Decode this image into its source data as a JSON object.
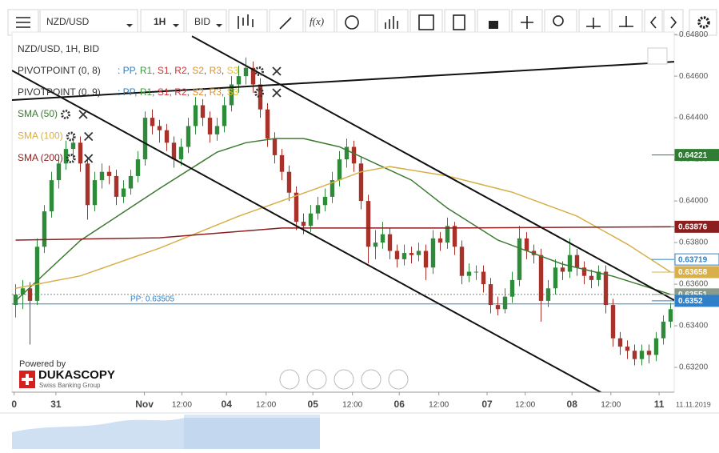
{
  "toolbar": {
    "instrument": "NZD/USD",
    "period": "1H",
    "side": "BID",
    "formula": "f(x)"
  },
  "chart_data": {
    "type": "candlestick",
    "title": "NZD/USD, 1H, BID",
    "up_color": "#2e8b3a",
    "down_color": "#a8322a",
    "candles": [
      [
        0.635,
        0.636,
        0.6344,
        0.6355
      ],
      [
        0.6355,
        0.6362,
        0.6348,
        0.6358
      ],
      [
        0.6358,
        0.6361,
        0.6331,
        0.6352
      ],
      [
        0.6352,
        0.6382,
        0.635,
        0.6378
      ],
      [
        0.6378,
        0.6398,
        0.6375,
        0.6395
      ],
      [
        0.6395,
        0.6414,
        0.6392,
        0.641
      ],
      [
        0.641,
        0.6422,
        0.6406,
        0.6418
      ],
      [
        0.6418,
        0.6429,
        0.6415,
        0.6425
      ],
      [
        0.6425,
        0.6432,
        0.642,
        0.6428
      ],
      [
        0.6428,
        0.6431,
        0.6414,
        0.6418
      ],
      [
        0.6418,
        0.6421,
        0.6391,
        0.6398
      ],
      [
        0.6398,
        0.6414,
        0.6395,
        0.641
      ],
      [
        0.641,
        0.6418,
        0.6406,
        0.6414
      ],
      [
        0.6414,
        0.6417,
        0.6408,
        0.6412
      ],
      [
        0.6412,
        0.6415,
        0.6398,
        0.6402
      ],
      [
        0.6402,
        0.641,
        0.6399,
        0.6406
      ],
      [
        0.6406,
        0.6415,
        0.6403,
        0.6412
      ],
      [
        0.6412,
        0.6424,
        0.6409,
        0.642
      ],
      [
        0.642,
        0.6443,
        0.6417,
        0.644
      ],
      [
        0.644,
        0.6444,
        0.6432,
        0.6436
      ],
      [
        0.6436,
        0.6439,
        0.6428,
        0.6434
      ],
      [
        0.6434,
        0.6437,
        0.6424,
        0.6428
      ],
      [
        0.6428,
        0.6431,
        0.6416,
        0.642
      ],
      [
        0.642,
        0.643,
        0.6417,
        0.6426
      ],
      [
        0.6426,
        0.644,
        0.6423,
        0.6436
      ],
      [
        0.6436,
        0.645,
        0.6432,
        0.6446
      ],
      [
        0.6446,
        0.6449,
        0.6436,
        0.644
      ],
      [
        0.644,
        0.6443,
        0.6428,
        0.6432
      ],
      [
        0.6432,
        0.644,
        0.6429,
        0.6436
      ],
      [
        0.6436,
        0.645,
        0.6433,
        0.6446
      ],
      [
        0.6446,
        0.646,
        0.6443,
        0.6456
      ],
      [
        0.6456,
        0.6465,
        0.6452,
        0.646
      ],
      [
        0.646,
        0.6469,
        0.6456,
        0.6464
      ],
      [
        0.6464,
        0.6467,
        0.6452,
        0.6456
      ],
      [
        0.6456,
        0.6459,
        0.644,
        0.6444
      ],
      [
        0.6444,
        0.6447,
        0.6426,
        0.643
      ],
      [
        0.643,
        0.6433,
        0.6418,
        0.6422
      ],
      [
        0.6422,
        0.6425,
        0.641,
        0.6414
      ],
      [
        0.6414,
        0.6417,
        0.64,
        0.6404
      ],
      [
        0.6404,
        0.6407,
        0.6386,
        0.639
      ],
      [
        0.639,
        0.6394,
        0.6384,
        0.6388
      ],
      [
        0.6388,
        0.6398,
        0.6385,
        0.6394
      ],
      [
        0.6394,
        0.6402,
        0.6391,
        0.6398
      ],
      [
        0.6398,
        0.6406,
        0.6395,
        0.6402
      ],
      [
        0.6402,
        0.6414,
        0.6399,
        0.641
      ],
      [
        0.641,
        0.6424,
        0.6407,
        0.642
      ],
      [
        0.642,
        0.643,
        0.6416,
        0.6426
      ],
      [
        0.6426,
        0.6429,
        0.6414,
        0.6418
      ],
      [
        0.6418,
        0.6421,
        0.6396,
        0.64
      ],
      [
        0.64,
        0.6403,
        0.637,
        0.6378
      ],
      [
        0.6378,
        0.6386,
        0.6372,
        0.638
      ],
      [
        0.638,
        0.639,
        0.6377,
        0.6384
      ],
      [
        0.6384,
        0.6387,
        0.6372,
        0.6376
      ],
      [
        0.6376,
        0.6379,
        0.6368,
        0.6372
      ],
      [
        0.6372,
        0.6379,
        0.6369,
        0.6375
      ],
      [
        0.6375,
        0.6378,
        0.637,
        0.6374
      ],
      [
        0.6374,
        0.638,
        0.6371,
        0.6376
      ],
      [
        0.6376,
        0.6379,
        0.6362,
        0.6368
      ],
      [
        0.6368,
        0.6386,
        0.6365,
        0.6382
      ],
      [
        0.6382,
        0.6385,
        0.6376,
        0.638
      ],
      [
        0.638,
        0.6392,
        0.6377,
        0.6388
      ],
      [
        0.6388,
        0.639,
        0.6374,
        0.6378
      ],
      [
        0.6378,
        0.6381,
        0.636,
        0.6364
      ],
      [
        0.6364,
        0.637,
        0.6361,
        0.6366
      ],
      [
        0.6366,
        0.6369,
        0.6362,
        0.6366
      ],
      [
        0.6366,
        0.6369,
        0.6356,
        0.636
      ],
      [
        0.636,
        0.6363,
        0.6346,
        0.635
      ],
      [
        0.635,
        0.6354,
        0.6345,
        0.6348
      ],
      [
        0.6348,
        0.6358,
        0.6346,
        0.6354
      ],
      [
        0.6354,
        0.6366,
        0.6351,
        0.6362
      ],
      [
        0.6362,
        0.6388,
        0.6359,
        0.6382
      ],
      [
        0.6382,
        0.6385,
        0.6372,
        0.6376
      ],
      [
        0.6376,
        0.6379,
        0.637,
        0.6374
      ],
      [
        0.6374,
        0.6377,
        0.6342,
        0.6352
      ],
      [
        0.6352,
        0.6362,
        0.6349,
        0.6358
      ],
      [
        0.6358,
        0.6372,
        0.6355,
        0.6368
      ],
      [
        0.6368,
        0.6371,
        0.6362,
        0.6366
      ],
      [
        0.6366,
        0.6382,
        0.6363,
        0.6374
      ],
      [
        0.6374,
        0.6377,
        0.6364,
        0.6368
      ],
      [
        0.6368,
        0.6371,
        0.636,
        0.6364
      ],
      [
        0.6364,
        0.6367,
        0.6358,
        0.6362
      ],
      [
        0.6362,
        0.6369,
        0.6359,
        0.6366
      ],
      [
        0.6366,
        0.6369,
        0.6346,
        0.635
      ],
      [
        0.635,
        0.6353,
        0.633,
        0.6334
      ],
      [
        0.6334,
        0.6337,
        0.6326,
        0.633
      ],
      [
        0.633,
        0.6333,
        0.6324,
        0.6328
      ],
      [
        0.6328,
        0.6331,
        0.6321,
        0.6324
      ],
      [
        0.6324,
        0.6331,
        0.6321,
        0.6328
      ],
      [
        0.6328,
        0.6331,
        0.6322,
        0.6326
      ],
      [
        0.6326,
        0.6337,
        0.6323,
        0.6334
      ],
      [
        0.6334,
        0.6345,
        0.6331,
        0.6342
      ],
      [
        0.6342,
        0.6351,
        0.6339,
        0.6348
      ]
    ],
    "series": [
      {
        "name": "SMA (50)",
        "color": "#3d7a32",
        "x": [
          0,
          9,
          20,
          28,
          32,
          36,
          40,
          45,
          50,
          55,
          60,
          67,
          76,
          83,
          91
        ],
        "values": [
          0.6352,
          0.6381,
          0.6406,
          0.64235,
          0.6428,
          0.643,
          0.643,
          0.6426,
          0.6418,
          0.641,
          0.63965,
          0.63812,
          0.63696,
          0.63638,
          0.63551
        ]
      },
      {
        "name": "SMA (100)",
        "color": "#d8b04a",
        "x": [
          0,
          9,
          20,
          31,
          42,
          48,
          52,
          60,
          69,
          78,
          85,
          91
        ],
        "values": [
          0.6358,
          0.6364,
          0.63773,
          0.63927,
          0.64062,
          0.6414,
          0.64165,
          0.6412,
          0.64042,
          0.63927,
          0.63792,
          0.63658
        ]
      },
      {
        "name": "SMA (200)",
        "color": "#8b1e1e",
        "x": [
          0,
          20,
          37,
          60,
          91
        ],
        "values": [
          0.63812,
          0.63823,
          0.6387,
          0.6387,
          0.63876
        ]
      }
    ],
    "pivots": [
      {
        "name": "PIVOTPOINT (0, 8)"
      },
      {
        "name": "PIVOTPOINT (0, 9)"
      }
    ],
    "pivot_legend": [
      {
        "text": ": ",
        "color": "#2f80c8"
      },
      {
        "text": "PP",
        "color": "#2f80c8"
      },
      {
        "text": ", ",
        "color": "#555"
      },
      {
        "text": "R1",
        "color": "#3d9a3d"
      },
      {
        "text": ", ",
        "color": "#555"
      },
      {
        "text": "S1",
        "color": "#d03030"
      },
      {
        "text": ", ",
        "color": "#555"
      },
      {
        "text": "R2",
        "color": "#d03030"
      },
      {
        "text": ", ",
        "color": "#555"
      },
      {
        "text": "S2",
        "color": "#e0902a"
      },
      {
        "text": ", ",
        "color": "#555"
      },
      {
        "text": "R3",
        "color": "#e0902a"
      },
      {
        "text": ", ",
        "color": "#555"
      },
      {
        "text": "S3",
        "color": "#e8c020"
      }
    ],
    "trendlines": [
      {
        "x": [
          24.5,
          91.5
        ],
        "values": [
          0.64792,
          0.63523
        ]
      },
      {
        "x": [
          -0.5,
          82.3
        ],
        "values": [
          0.64627,
          0.63062
        ]
      },
      {
        "x": [
          -0.5,
          91.5
        ],
        "values": [
          0.64485,
          0.64669
        ]
      }
    ],
    "pivot_line": {
      "label": "PP: 0.63505",
      "value": 0.63505,
      "color": "#2f80c8"
    },
    "dashed_line": {
      "value": 0.63551
    },
    "price_labels": [
      {
        "value": 0.64221,
        "color": "#2e7d32",
        "style": "fill"
      },
      {
        "value": 0.63876,
        "color": "#8b1e1e",
        "style": "fill"
      },
      {
        "value": 0.63719,
        "color": "#2f80c8",
        "style": "outline"
      },
      {
        "value": 0.63658,
        "color": "#d8b04a",
        "style": "fill"
      },
      {
        "value": 0.63551,
        "color": "#8a9a8a",
        "style": "fill"
      },
      {
        "value": 0.6352,
        "color": "#2f80c8",
        "style": "fill"
      }
    ],
    "xlim": [
      -0.5,
      91.5
    ],
    "ylim": [
      0.63081,
      0.64812
    ],
    "yticks": [
      {
        "value": 0.632,
        "label": "0.63200"
      },
      {
        "value": 0.634,
        "label": "0.63400"
      },
      {
        "value": 0.636,
        "label": "0.63600"
      },
      {
        "value": 0.638,
        "label": "0.63800"
      },
      {
        "value": 0.64,
        "label": "0.64000"
      },
      {
        "value": 0.642,
        "label": "0.64200"
      },
      {
        "value": 0.644,
        "label": "0.64400"
      },
      {
        "value": 0.646,
        "label": "0.64600"
      },
      {
        "value": 0.648,
        "label": "0.64800"
      }
    ],
    "xticks": [
      {
        "value": -0.2,
        "label": "0"
      },
      {
        "value": 5.6,
        "label": "31"
      },
      {
        "value": 17.9,
        "label": "Nov"
      },
      {
        "value": 23.1,
        "label": "12:00"
      },
      {
        "value": 29.3,
        "label": "04"
      },
      {
        "value": 34.8,
        "label": "12:00"
      },
      {
        "value": 41.3,
        "label": "05"
      },
      {
        "value": 46.8,
        "label": "12:00"
      },
      {
        "value": 53.3,
        "label": "06"
      },
      {
        "value": 58.8,
        "label": "12:00"
      },
      {
        "value": 65.5,
        "label": "07"
      },
      {
        "value": 70.8,
        "label": "12:00"
      },
      {
        "value": 77.3,
        "label": "08"
      },
      {
        "value": 82.7,
        "label": "12:00"
      },
      {
        "value": 89.4,
        "label": "11"
      }
    ],
    "date_label": "11.11.2019"
  },
  "branding": {
    "powered": "Powered by",
    "name": "DUKASCOPY",
    "tagline": "Swiss Banking Group"
  }
}
